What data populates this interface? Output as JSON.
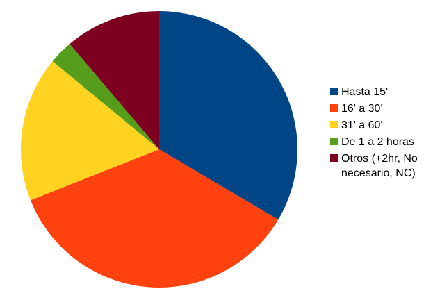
{
  "chart_data": {
    "type": "pie",
    "title": "",
    "legend_position": "right",
    "categories": [
      "Hasta 15'",
      "16' a 30'",
      "31' a 60'",
      "De 1 a 2 horas",
      "Otros (+2hr, No\nnecesario, NC)"
    ],
    "values": [
      33.5,
      35.5,
      17.0,
      2.8,
      11.2
    ],
    "unit": "%",
    "colors": [
      "#004586",
      "#ff420e",
      "#ffd320",
      "#579d1c",
      "#7e0021"
    ]
  }
}
